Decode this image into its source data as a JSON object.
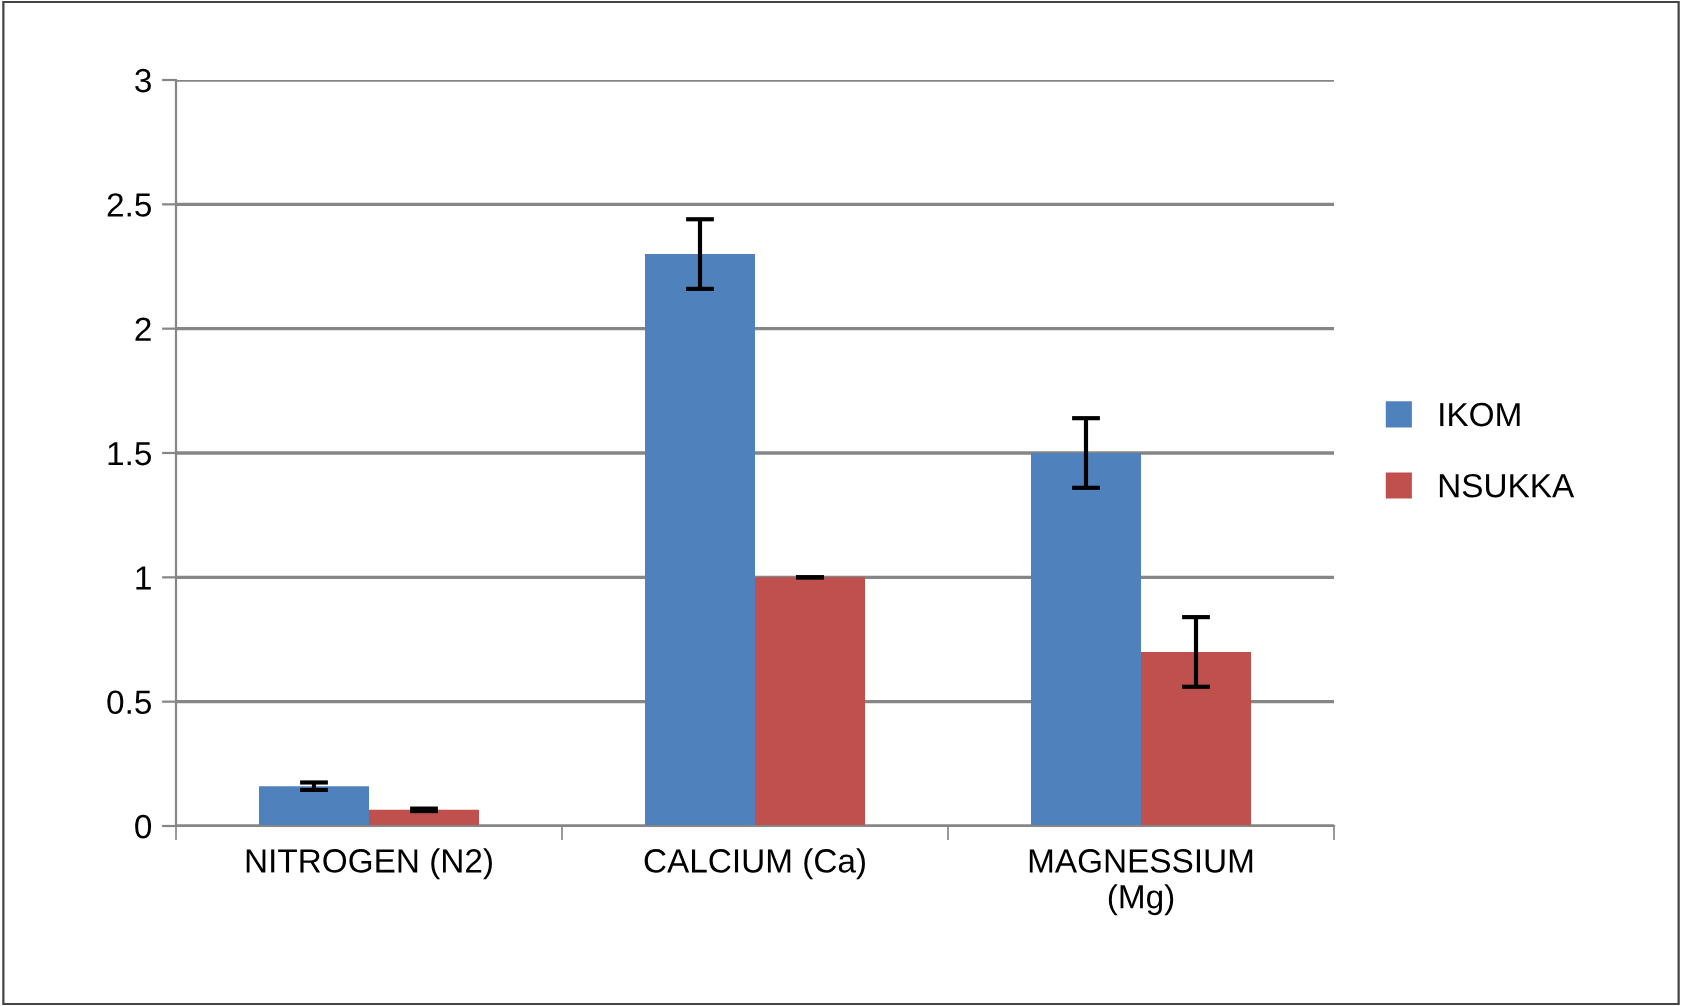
{
  "chart_data": {
    "type": "bar",
    "categories": [
      "NITROGEN (N2)",
      "CALCIUM (Ca)",
      "MAGNESSIUM\n(Mg)"
    ],
    "series": [
      {
        "name": "IKOM",
        "color": "#4f81bd",
        "values": [
          0.16,
          2.3,
          1.5
        ],
        "errors": [
          0.015,
          0.14,
          0.14
        ]
      },
      {
        "name": "NSUKKA",
        "color": "#c0504d",
        "values": [
          0.065,
          1.0,
          0.7
        ],
        "errors": [
          0.005,
          0,
          0.14
        ]
      }
    ],
    "ylim": [
      0,
      3
    ],
    "yticks": [
      0,
      0.5,
      1,
      1.5,
      2,
      2.5,
      3
    ],
    "grid": "y",
    "legend": "right"
  }
}
